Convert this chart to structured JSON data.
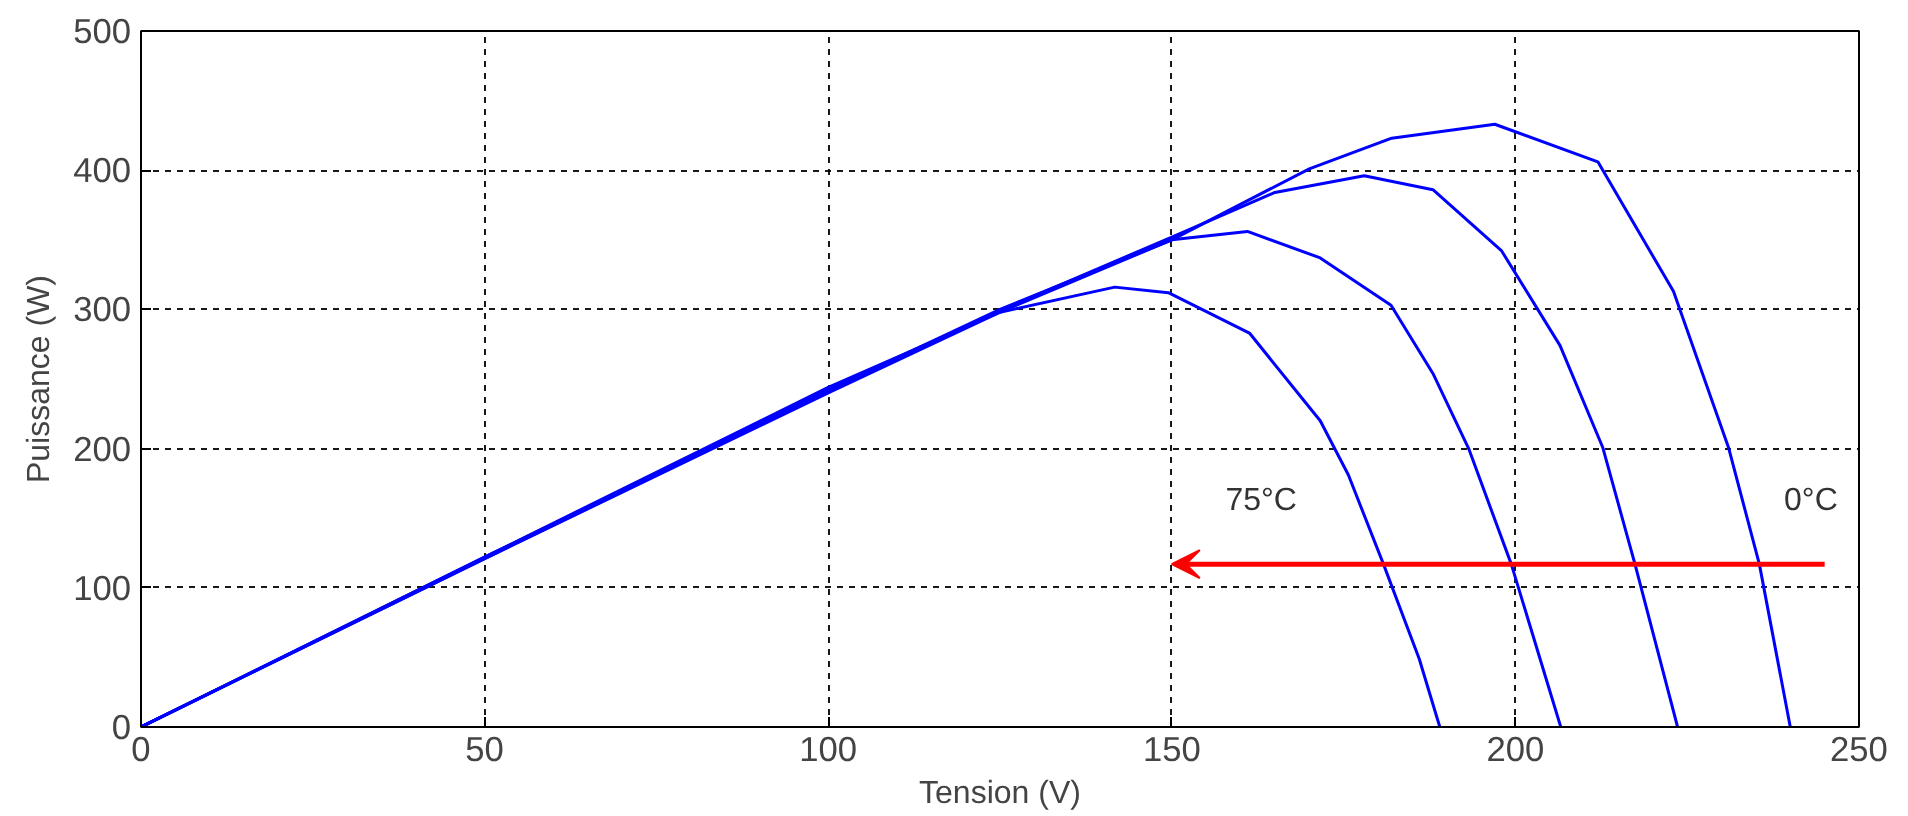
{
  "chart_data": {
    "type": "line",
    "xlabel": "Tension (V)",
    "ylabel": "Puissance (W)",
    "xlim": [
      0,
      250
    ],
    "ylim": [
      0,
      500
    ],
    "xticks": [
      0,
      50,
      100,
      150,
      200,
      250
    ],
    "yticks": [
      0,
      100,
      200,
      300,
      400,
      500
    ],
    "grid": true,
    "line_style": "solid",
    "annotations": [
      "75°C",
      "0°C"
    ],
    "series": [
      {
        "color": "#0000ff",
        "x": [
          0,
          50,
          100,
          125,
          150,
          170,
          182,
          197,
          212,
          223,
          231,
          235.5,
          240
        ],
        "values": [
          0,
          121,
          240,
          298,
          350,
          401,
          423,
          433,
          406,
          313,
          201,
          117,
          0
        ]
      },
      {
        "color": "#0000ff",
        "x": [
          0,
          50,
          100,
          125,
          150,
          165,
          178,
          188,
          198,
          206.5,
          212.7,
          217.4,
          223.6
        ],
        "values": [
          0,
          121,
          241,
          299,
          352,
          384,
          396,
          386,
          342,
          274,
          201,
          117,
          0
        ]
      },
      {
        "color": "#0000ff",
        "x": [
          0,
          50,
          100,
          125,
          150,
          161,
          171.6,
          181.9,
          188,
          193.2,
          199.4,
          206.6
        ],
        "values": [
          0,
          122,
          242,
          300,
          350,
          356,
          337,
          303,
          254,
          200,
          117,
          0
        ]
      },
      {
        "color": "#0000ff",
        "x": [
          0,
          50,
          100,
          125,
          141.7,
          149.5,
          161.3,
          171.6,
          175.7,
          180.8,
          186,
          189
        ],
        "values": [
          0,
          122,
          244,
          298,
          316,
          312,
          283,
          220,
          181,
          117,
          49,
          0
        ]
      }
    ]
  }
}
